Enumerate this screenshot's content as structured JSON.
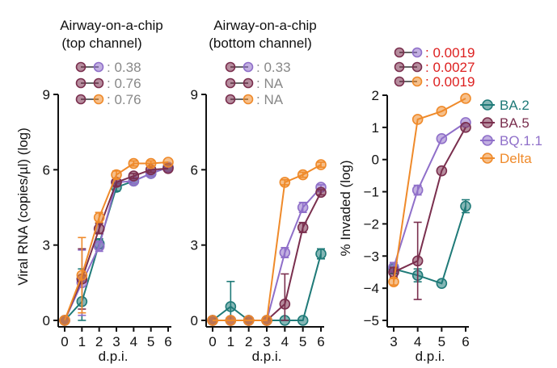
{
  "colors": {
    "BA.2": "#1f7a78",
    "BA.5": "#7a2f4e",
    "BQ.1.1": "#8f6fc9",
    "Delta": "#ef8a2a",
    "pvalue_gray": "#888888",
    "pvalue_red": "#dd1f1f"
  },
  "legend": [
    "BA.2",
    "BA.5",
    "BQ.1.1",
    "Delta"
  ],
  "chart_data": [
    {
      "type": "line",
      "title": "Airway-on-a-chip\n(top channel)",
      "xlabel": "d.p.i.",
      "ylabel": "Viral RNA (copies/µl) (log)",
      "x": [
        0,
        1,
        2,
        3,
        4,
        5,
        6
      ],
      "xticks": [
        "0",
        "1",
        "2",
        "3",
        "4",
        "5",
        "6"
      ],
      "ylim": [
        0,
        9
      ],
      "yticks": [
        "0",
        "3",
        "6",
        "9"
      ],
      "series": [
        {
          "name": "BA.2",
          "values": [
            0,
            0.75,
            3.05,
            5.3,
            5.55,
            5.85,
            6.1
          ],
          "errors": [
            0,
            1.3,
            0.2,
            0.15,
            0.1,
            0.1,
            0.05
          ]
        },
        {
          "name": "BA.5",
          "values": [
            0,
            1.65,
            3.65,
            5.5,
            5.75,
            6.0,
            6.05
          ],
          "errors": [
            0,
            1.2,
            0.2,
            0.15,
            0.1,
            0.1,
            0.05
          ]
        },
        {
          "name": "BQ.1.1",
          "values": [
            0,
            1.5,
            2.95,
            5.5,
            5.55,
            5.85,
            6.1
          ],
          "errors": [
            0,
            1.3,
            0.2,
            0.15,
            0.1,
            0.1,
            0.05
          ]
        },
        {
          "name": "Delta",
          "values": [
            0,
            1.8,
            4.1,
            5.8,
            6.25,
            6.25,
            6.3
          ],
          "errors": [
            0,
            1.5,
            0.2,
            0.15,
            0.1,
            0.1,
            0.05
          ]
        }
      ],
      "pvalues": [
        {
          "compare": "BQ.1.1",
          "text": "0.38",
          "sig": false
        },
        {
          "compare": "BA.5",
          "text": "0.76",
          "sig": false
        },
        {
          "compare": "Delta",
          "text": "0.76",
          "sig": false
        }
      ]
    },
    {
      "type": "line",
      "title": "Airway-on-a-chip\n(bottom channel)",
      "xlabel": "d.p.i.",
      "ylabel": "",
      "x": [
        0,
        1,
        2,
        3,
        4,
        5,
        6
      ],
      "xticks": [
        "0",
        "1",
        "2",
        "3",
        "4",
        "5",
        "6"
      ],
      "ylim": [
        0,
        9
      ],
      "yticks": [
        "0",
        "3",
        "6",
        "9"
      ],
      "series": [
        {
          "name": "BA.2",
          "values": [
            0,
            0.55,
            0,
            0,
            0,
            0,
            2.65
          ],
          "errors": [
            0,
            1.0,
            0,
            0,
            0,
            0,
            0.2
          ]
        },
        {
          "name": "BA.5",
          "values": [
            0,
            0,
            0,
            0,
            0.65,
            3.7,
            5.1
          ],
          "errors": [
            0,
            0,
            0,
            0,
            1.2,
            0.2,
            0.1
          ]
        },
        {
          "name": "BQ.1.1",
          "values": [
            0,
            0,
            0,
            0,
            2.7,
            4.5,
            5.3
          ],
          "errors": [
            0,
            0,
            0,
            0,
            0.2,
            0.2,
            0.1
          ]
        },
        {
          "name": "Delta",
          "values": [
            0,
            0,
            0,
            0,
            5.5,
            5.8,
            6.2
          ],
          "errors": [
            0,
            0,
            0,
            0,
            0.1,
            0.1,
            0.1
          ]
        }
      ],
      "pvalues": [
        {
          "compare": "BQ.1.1",
          "text": "0.33",
          "sig": false
        },
        {
          "compare": "BA.5",
          "text": "NA",
          "sig": false
        },
        {
          "compare": "Delta",
          "text": "NA",
          "sig": false
        }
      ]
    },
    {
      "type": "line",
      "title": "",
      "xlabel": "d.p.i.",
      "ylabel": "% Invaded (log)",
      "x": [
        3,
        4,
        5,
        6
      ],
      "xticks": [
        "3",
        "4",
        "5",
        "6"
      ],
      "ylim": [
        -5,
        2
      ],
      "yticks": [
        "−5",
        "−4",
        "−3",
        "−2",
        "−1",
        "0",
        "1",
        "2"
      ],
      "series": [
        {
          "name": "BA.2",
          "values": [
            -3.4,
            -3.6,
            -3.85,
            -1.45
          ],
          "errors": [
            0.15,
            0.2,
            0,
            0.2
          ]
        },
        {
          "name": "BA.5",
          "values": [
            -3.5,
            -3.15,
            -0.35,
            1.0
          ],
          "errors": [
            0.15,
            1.2,
            0,
            0.05
          ]
        },
        {
          "name": "BQ.1.1",
          "values": [
            -3.35,
            -0.95,
            0.65,
            1.15
          ],
          "errors": [
            0.15,
            0.15,
            0,
            0.05
          ]
        },
        {
          "name": "Delta",
          "values": [
            -3.8,
            1.25,
            1.5,
            1.9
          ],
          "errors": [
            0.1,
            0.05,
            0,
            0.05
          ]
        }
      ],
      "pvalues": [
        {
          "compare": "BQ.1.1",
          "text": "0.0019",
          "sig": true
        },
        {
          "compare": "BA.5",
          "text": "0.0027",
          "sig": true
        },
        {
          "compare": "Delta",
          "text": "0.0019",
          "sig": true
        }
      ]
    }
  ]
}
